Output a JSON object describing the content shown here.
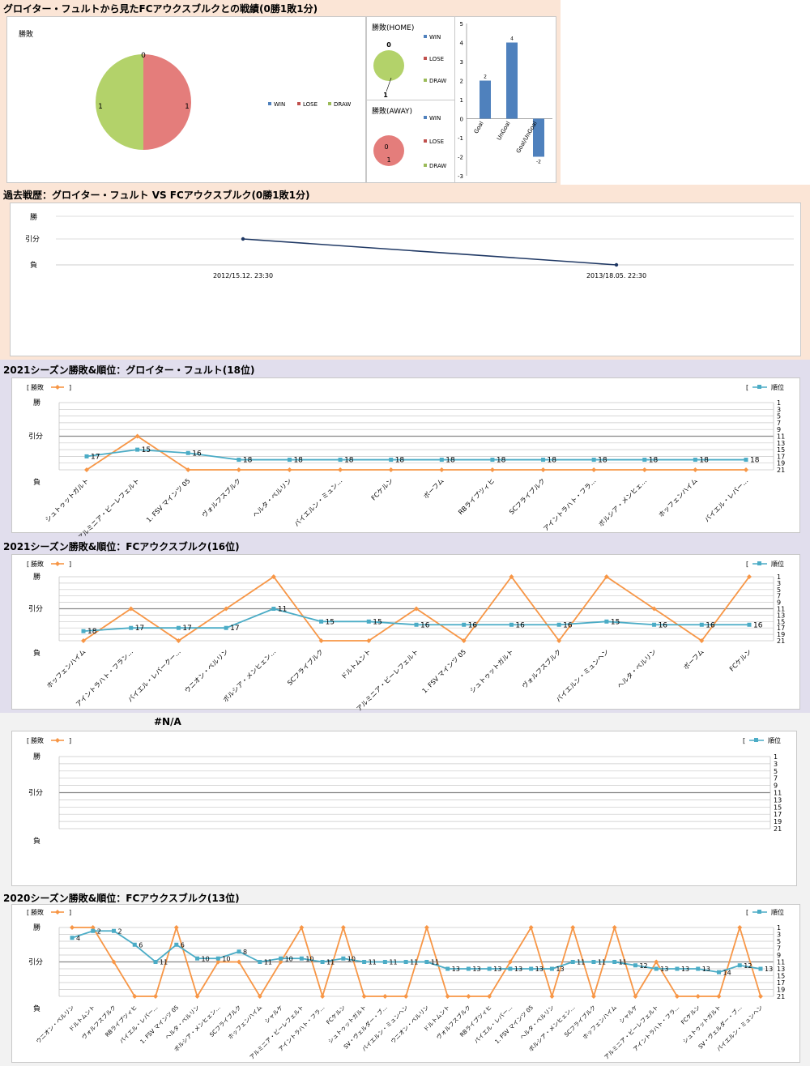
{
  "section1": {
    "title": "グロイター・フュルトから見たFCアウクスブルクとの戦績(0勝1敗1分)",
    "pie_main": {
      "title": "勝敗",
      "labels": [
        "0",
        "1",
        "1"
      ]
    },
    "pie_home": {
      "title": "勝敗(HOME)",
      "labels": [
        "0",
        "1"
      ]
    },
    "pie_away": {
      "title": "勝敗(AWAY)",
      "labels": [
        "0",
        "1"
      ]
    },
    "legend": [
      "WIN",
      "LOSE",
      "DRAW"
    ]
  },
  "section2": {
    "title": "過去戦歴：グロイター・フュルト VS FCアウクスブルク(0勝1敗1分)"
  },
  "section3": {
    "title": "2021シーズン勝敗&順位：グロイター・フュルト(18位)"
  },
  "section4": {
    "title": "2021シーズン勝敗&順位：FCアウクスブルク(16位)"
  },
  "section5": {
    "title": "#N/A"
  },
  "section6": {
    "title": "2020シーズン勝敗&順位：FCアウクスブルク(13位)"
  },
  "common": {
    "legend_result": "勝敗",
    "legend_rank": "順位",
    "bracket_open": "[",
    "bracket_close": "]",
    "y_win": "勝",
    "y_draw": "引分",
    "y_lose": "負"
  },
  "colors": {
    "win": "#4f81bd",
    "lose": "#c0504d",
    "draw": "#9bbb59",
    "result_line": "#f79646",
    "rank_line": "#4bacc6",
    "history_line": "#1f3864",
    "bar": "#4f81bd",
    "sec1_bg": "#fbe5d6",
    "sec2_bg": "#fbe5d6",
    "sec34_bg": "#e1deed",
    "sec56_bg": "#f2f2f2"
  },
  "chart_data": [
    {
      "id": "pie_main",
      "type": "pie",
      "title": "勝敗",
      "categories": [
        "WIN",
        "LOSE",
        "DRAW"
      ],
      "values": [
        0,
        1,
        1
      ],
      "legend_position": "right"
    },
    {
      "id": "pie_home",
      "type": "pie",
      "title": "勝敗(HOME)",
      "categories": [
        "WIN",
        "LOSE",
        "DRAW"
      ],
      "values": [
        0,
        0,
        1
      ],
      "legend_position": "right"
    },
    {
      "id": "pie_away",
      "type": "pie",
      "title": "勝敗(AWAY)",
      "categories": [
        "WIN",
        "LOSE",
        "DRAW"
      ],
      "values": [
        0,
        1,
        0
      ],
      "legend_position": "right"
    },
    {
      "id": "goal_bar",
      "type": "bar",
      "categories": [
        "Goal",
        "UnGoal",
        "Goal/UnGoal"
      ],
      "values": [
        2,
        4,
        -2
      ],
      "ylim": [
        -3,
        5
      ],
      "yticks": [
        "5",
        "4",
        "3",
        "2",
        "1",
        "0",
        "-1",
        "-2",
        "-3"
      ],
      "data_labels": [
        "2",
        "4",
        "-2"
      ]
    },
    {
      "id": "history",
      "type": "line",
      "x": [
        "2012/15.12. 23:30",
        "2013/18.05. 22:30"
      ],
      "y": [
        "引分",
        "負"
      ]
    },
    {
      "id": "season_furth_2021",
      "type": "line",
      "categories": [
        "シュトゥットガルト",
        "アルミニア・ビーレフェルト",
        "1. FSV マインツ 05",
        "ヴォルフスブルク",
        "ヘルタ・ベルリン",
        "バイエルン・ミュン…",
        "FCケルン",
        "ボーフム",
        "RBライプツィヒ",
        "SCフライブルク",
        "アイントラハト・フラ…",
        "ボルシア・メンヒェ…",
        "ホッフェンハイム",
        "バイエル・レバー…"
      ],
      "series": [
        {
          "name": "勝敗",
          "values": [
            "負",
            "引分",
            "負",
            "負",
            "負",
            "負",
            "負",
            "負",
            "負",
            "負",
            "負",
            "負",
            "負",
            "負"
          ]
        },
        {
          "name": "順位",
          "values": [
            17,
            15,
            16,
            18,
            18,
            18,
            18,
            18,
            18,
            18,
            18,
            18,
            18,
            18
          ]
        }
      ],
      "rank_ticks": [
        "1",
        "3",
        "5",
        "7",
        "9",
        "11",
        "13",
        "15",
        "17",
        "19",
        "21"
      ]
    },
    {
      "id": "season_augsburg_2021",
      "type": "line",
      "categories": [
        "ホッフェンハイム",
        "アイントラハト・フラン…",
        "バイエル・レバークー…",
        "ウニオン・ベルリン",
        "ボルシア・メンヒェン…",
        "SCフライブルク",
        "ドルトムント",
        "アルミニア・ビーレフェルト",
        "1. FSV マインツ 05",
        "シュトゥットガルト",
        "ヴォルフスブルク",
        "バイエルン・ミュンヘン",
        "ヘルタ・ベルリン",
        "ボーフム",
        "FCケルン"
      ],
      "series": [
        {
          "name": "勝敗",
          "values": [
            "負",
            "引分",
            "負",
            "引分",
            "勝",
            "負",
            "負",
            "引分",
            "負",
            "勝",
            "負",
            "勝",
            "引分",
            "負",
            "勝"
          ]
        },
        {
          "name": "順位",
          "values": [
            18,
            17,
            17,
            17,
            11,
            15,
            15,
            16,
            16,
            16,
            16,
            15,
            16,
            16,
            16
          ]
        }
      ],
      "rank_ticks": [
        "1",
        "3",
        "5",
        "7",
        "9",
        "11",
        "13",
        "15",
        "17",
        "19",
        "21"
      ]
    },
    {
      "id": "empty_na",
      "type": "line",
      "categories": [],
      "series": [
        {
          "name": "勝敗",
          "values": []
        },
        {
          "name": "順位",
          "values": []
        }
      ],
      "rank_ticks": [
        "1",
        "3",
        "5",
        "7",
        "9",
        "11",
        "13",
        "15",
        "17",
        "19",
        "21"
      ]
    },
    {
      "id": "season_augsburg_2020",
      "type": "line",
      "categories": [
        "ウニオン・ベルリン",
        "ドルトムント",
        "ヴォルフスブルク",
        "RBライプツィヒ",
        "バイエル・レバー…",
        "1. FSV マインツ 05",
        "ヘルタ・ベルリン",
        "ボルシア・メンヒェン…",
        "SCフライブルク",
        "ホッフェンハイム",
        "シャルケ",
        "アルミニア・ビーレフェルト",
        "アイントラハト・フラ…",
        "FCケルン",
        "シュトゥットガルト",
        "SV・ヴェルダー・ブ…",
        "バイエルン・ミュンヘン",
        "ウニオン・ベルリン",
        "ドルトムント",
        "ヴォルフスブルク",
        "RBライプツィヒ",
        "バイエル・レバー…",
        "1. FSV マインツ 05",
        "ヘルタ・ベルリン",
        "ボルシア・メンヒェン…",
        "SCフライブルク",
        "ホッフェンハイム",
        "シャルケ",
        "アルミニア・ビーレフェルト",
        "アイントラハト・フラ…",
        "FCケルン",
        "シュトゥットガルト",
        "SV・ヴェルダー・ブ…",
        "バイエルン・ミュンヘン"
      ],
      "series": [
        {
          "name": "勝敗",
          "values": [
            "勝",
            "勝",
            "引分",
            "負",
            "負",
            "勝",
            "負",
            "引分",
            "引分",
            "負",
            "引分",
            "勝",
            "負",
            "勝",
            "負",
            "負",
            "負",
            "勝",
            "負",
            "負",
            "負",
            "引分",
            "勝",
            "負",
            "勝",
            "負",
            "勝",
            "負",
            "引分",
            "負",
            "負",
            "負",
            "勝",
            "負"
          ]
        },
        {
          "name": "順位",
          "values": [
            4,
            2,
            2,
            6,
            11,
            6,
            10,
            10,
            8,
            11,
            10,
            10,
            11,
            10,
            11,
            11,
            11,
            11,
            13,
            13,
            13,
            13,
            13,
            13,
            11,
            11,
            11,
            12,
            13,
            13,
            13,
            14,
            12,
            13
          ]
        }
      ],
      "rank_ticks": [
        "1",
        "3",
        "5",
        "7",
        "9",
        "11",
        "13",
        "15",
        "17",
        "19",
        "21"
      ]
    }
  ]
}
